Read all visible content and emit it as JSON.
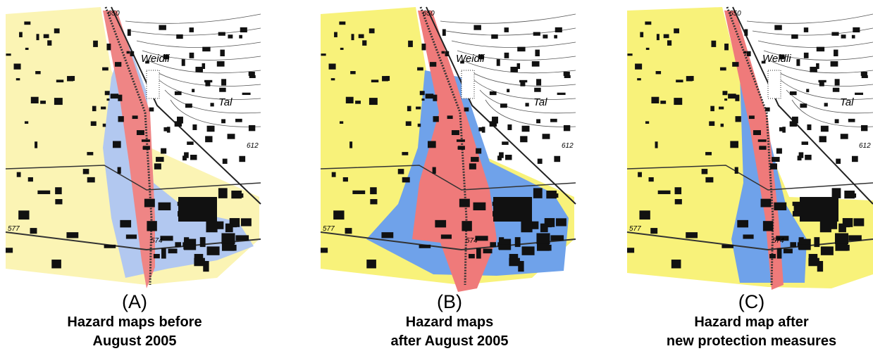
{
  "panels": [
    {
      "letter": "(A)",
      "caption": [
        "Hazard maps before",
        "August 2005"
      ],
      "map_labels": [
        "650",
        "Weidli",
        "Tal",
        "612",
        "577",
        "574"
      ]
    },
    {
      "letter": "(B)",
      "caption": [
        "Hazard maps",
        "after August 2005"
      ],
      "map_labels": [
        "650",
        "Weidli",
        "Tal",
        "612",
        "577",
        "574"
      ]
    },
    {
      "letter": "(C)",
      "caption": [
        "Hazard map after",
        "new protection measures"
      ],
      "map_labels": [
        "650",
        "Weidli",
        "Tal",
        "612",
        "577",
        "574"
      ]
    }
  ]
}
